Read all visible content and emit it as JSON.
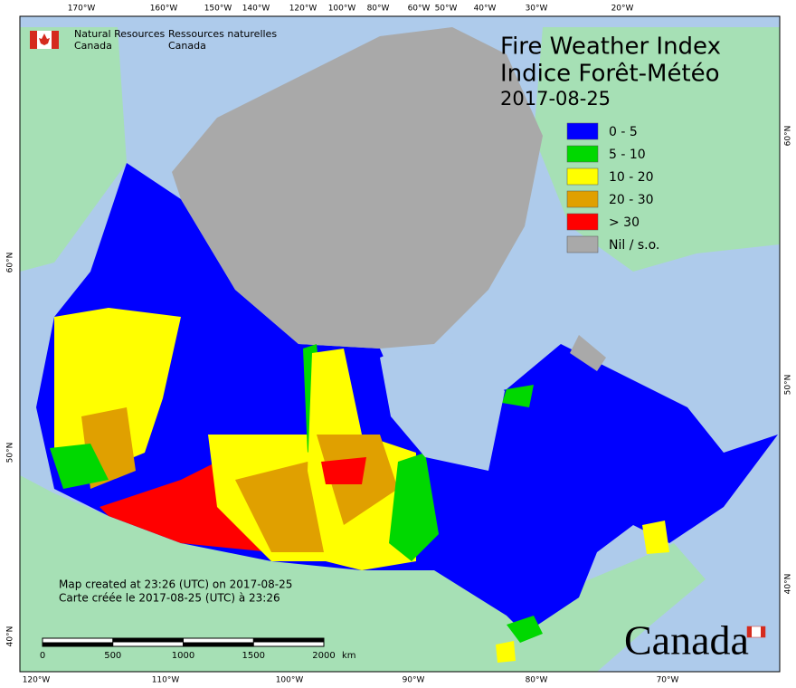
{
  "header": {
    "agency_en_1": "Natural Resources",
    "agency_en_2": "Canada",
    "agency_fr_1": "Ressources naturelles",
    "agency_fr_2": "Canada"
  },
  "title": {
    "en": "Fire Weather Index",
    "fr": "Indice Forêt-Météo",
    "date": "2017-08-25"
  },
  "legend": [
    {
      "label": "0 - 5",
      "color": "#0000ff"
    },
    {
      "label": "5 - 10",
      "color": "#00d800"
    },
    {
      "label": "10 - 20",
      "color": "#ffff00"
    },
    {
      "label": "20 - 30",
      "color": "#e0a000"
    },
    {
      "label": "> 30",
      "color": "#ff0000"
    },
    {
      "label": "Nil / s.o.",
      "color": "#a9a9a9"
    }
  ],
  "credit": {
    "en": "Map created at 23:26 (UTC) on 2017-08-25",
    "fr": "Carte créée le 2017-08-25 (UTC) à 23:26"
  },
  "scale_bar": {
    "ticks": [
      0,
      500,
      1000,
      1500,
      2000
    ],
    "unit": "km"
  },
  "graticule": {
    "top": [
      "170°W",
      "160°W",
      "150°W",
      "140°W",
      "120°W",
      "100°W",
      "80°W",
      "60°W",
      "50°W",
      "40°W",
      "30°W",
      "20°W"
    ],
    "bottom": [
      "120°W",
      "110°W",
      "100°W",
      "90°W",
      "80°W",
      "70°W"
    ],
    "left": [
      "60°N",
      "50°N",
      "40°N"
    ],
    "right": [
      "60°N",
      "50°N",
      "40°N"
    ]
  },
  "wordmark": "Canada"
}
